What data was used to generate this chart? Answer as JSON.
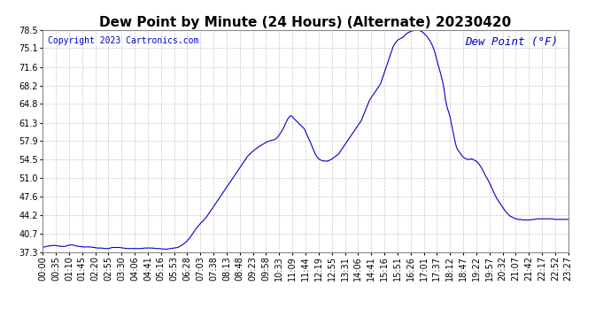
{
  "title": "Dew Point by Minute (24 Hours) (Alternate) 20230420",
  "copyright": "Copyright 2023 Cartronics.com",
  "legend_label": "Dew Point (°F)",
  "line_color": "#0000cc",
  "legend_color": "#0000cc",
  "copyright_color": "#0000cc",
  "background_color": "#ffffff",
  "grid_color": "#b0b0b0",
  "ylim": [
    37.3,
    78.5
  ],
  "yticks": [
    37.3,
    40.7,
    44.2,
    47.6,
    51.0,
    54.5,
    57.9,
    61.3,
    64.8,
    68.2,
    71.6,
    75.1,
    78.5
  ],
  "xtick_labels": [
    "00:00",
    "00:35",
    "01:10",
    "01:45",
    "02:20",
    "02:55",
    "03:30",
    "04:06",
    "04:41",
    "05:16",
    "05:53",
    "06:28",
    "07:03",
    "07:38",
    "08:13",
    "08:48",
    "09:23",
    "09:58",
    "10:33",
    "11:09",
    "11:44",
    "12:19",
    "12:55",
    "13:31",
    "14:06",
    "14:41",
    "15:16",
    "15:51",
    "16:26",
    "17:01",
    "17:37",
    "18:12",
    "18:47",
    "19:22",
    "19:57",
    "20:32",
    "21:07",
    "21:42",
    "22:17",
    "22:52",
    "23:27"
  ],
  "title_fontsize": 11,
  "axis_fontsize": 7,
  "copyright_fontsize": 7,
  "legend_fontsize": 9,
  "data_points": [
    [
      0,
      38.2
    ],
    [
      10,
      38.4
    ],
    [
      20,
      38.5
    ],
    [
      30,
      38.6
    ],
    [
      40,
      38.5
    ],
    [
      50,
      38.4
    ],
    [
      60,
      38.4
    ],
    [
      70,
      38.6
    ],
    [
      80,
      38.7
    ],
    [
      90,
      38.5
    ],
    [
      100,
      38.4
    ],
    [
      110,
      38.3
    ],
    [
      120,
      38.3
    ],
    [
      130,
      38.3
    ],
    [
      140,
      38.2
    ],
    [
      150,
      38.1
    ],
    [
      160,
      38.1
    ],
    [
      170,
      38.0
    ],
    [
      180,
      38.0
    ],
    [
      185,
      38.1
    ],
    [
      190,
      38.2
    ],
    [
      200,
      38.2
    ],
    [
      210,
      38.2
    ],
    [
      220,
      38.1
    ],
    [
      230,
      38.0
    ],
    [
      240,
      38.0
    ],
    [
      250,
      38.0
    ],
    [
      260,
      38.0
    ],
    [
      270,
      38.0
    ],
    [
      280,
      38.1
    ],
    [
      290,
      38.1
    ],
    [
      300,
      38.1
    ],
    [
      310,
      38.0
    ],
    [
      320,
      38.0
    ],
    [
      330,
      37.9
    ],
    [
      340,
      37.9
    ],
    [
      350,
      38.0
    ],
    [
      360,
      38.1
    ],
    [
      370,
      38.2
    ],
    [
      375,
      38.4
    ],
    [
      380,
      38.6
    ],
    [
      385,
      38.8
    ],
    [
      390,
      39.1
    ],
    [
      395,
      39.4
    ],
    [
      400,
      39.8
    ],
    [
      405,
      40.2
    ],
    [
      410,
      40.7
    ],
    [
      415,
      41.2
    ],
    [
      420,
      41.7
    ],
    [
      425,
      42.1
    ],
    [
      430,
      42.5
    ],
    [
      435,
      42.9
    ],
    [
      440,
      43.2
    ],
    [
      445,
      43.6
    ],
    [
      450,
      44.0
    ],
    [
      455,
      44.5
    ],
    [
      460,
      45.0
    ],
    [
      465,
      45.5
    ],
    [
      470,
      46.0
    ],
    [
      475,
      46.5
    ],
    [
      480,
      47.0
    ],
    [
      485,
      47.5
    ],
    [
      490,
      48.0
    ],
    [
      495,
      48.5
    ],
    [
      500,
      49.0
    ],
    [
      505,
      49.5
    ],
    [
      510,
      50.0
    ],
    [
      515,
      50.5
    ],
    [
      520,
      51.0
    ],
    [
      525,
      51.5
    ],
    [
      530,
      52.0
    ],
    [
      535,
      52.5
    ],
    [
      540,
      53.0
    ],
    [
      545,
      53.5
    ],
    [
      550,
      54.0
    ],
    [
      555,
      54.5
    ],
    [
      560,
      55.0
    ],
    [
      565,
      55.4
    ],
    [
      570,
      55.7
    ],
    [
      575,
      56.0
    ],
    [
      580,
      56.3
    ],
    [
      585,
      56.5
    ],
    [
      590,
      56.8
    ],
    [
      595,
      57.0
    ],
    [
      600,
      57.2
    ],
    [
      605,
      57.4
    ],
    [
      610,
      57.6
    ],
    [
      615,
      57.8
    ],
    [
      620,
      57.9
    ],
    [
      625,
      58.0
    ],
    [
      630,
      58.1
    ],
    [
      635,
      58.2
    ],
    [
      638,
      58.3
    ],
    [
      641,
      58.5
    ],
    [
      644,
      58.7
    ],
    [
      647,
      59.0
    ],
    [
      650,
      59.3
    ],
    [
      653,
      59.6
    ],
    [
      656,
      59.9
    ],
    [
      659,
      60.3
    ],
    [
      662,
      60.7
    ],
    [
      665,
      61.2
    ],
    [
      668,
      61.6
    ],
    [
      671,
      62.0
    ],
    [
      674,
      62.3
    ],
    [
      677,
      62.5
    ],
    [
      680,
      62.6
    ],
    [
      683,
      62.5
    ],
    [
      686,
      62.2
    ],
    [
      689,
      62.0
    ],
    [
      692,
      61.8
    ],
    [
      695,
      61.6
    ],
    [
      698,
      61.4
    ],
    [
      701,
      61.2
    ],
    [
      704,
      61.0
    ],
    [
      707,
      60.8
    ],
    [
      710,
      60.6
    ],
    [
      713,
      60.4
    ],
    [
      716,
      60.2
    ],
    [
      719,
      59.8
    ],
    [
      722,
      59.3
    ],
    [
      725,
      58.8
    ],
    [
      728,
      58.4
    ],
    [
      731,
      58.0
    ],
    [
      734,
      57.5
    ],
    [
      737,
      57.0
    ],
    [
      740,
      56.5
    ],
    [
      743,
      56.0
    ],
    [
      746,
      55.5
    ],
    [
      749,
      55.2
    ],
    [
      752,
      54.9
    ],
    [
      755,
      54.7
    ],
    [
      758,
      54.5
    ],
    [
      761,
      54.4
    ],
    [
      764,
      54.3
    ],
    [
      770,
      54.2
    ],
    [
      780,
      54.2
    ],
    [
      790,
      54.5
    ],
    [
      800,
      55.0
    ],
    [
      810,
      55.5
    ],
    [
      815,
      56.0
    ],
    [
      820,
      56.5
    ],
    [
      825,
      57.0
    ],
    [
      830,
      57.5
    ],
    [
      835,
      58.0
    ],
    [
      840,
      58.5
    ],
    [
      845,
      59.0
    ],
    [
      850,
      59.5
    ],
    [
      855,
      60.0
    ],
    [
      860,
      60.5
    ],
    [
      865,
      61.0
    ],
    [
      868,
      61.3
    ],
    [
      871,
      61.5
    ],
    [
      874,
      62.0
    ],
    [
      877,
      62.5
    ],
    [
      880,
      63.0
    ],
    [
      883,
      63.5
    ],
    [
      886,
      64.0
    ],
    [
      889,
      64.5
    ],
    [
      892,
      65.0
    ],
    [
      895,
      65.5
    ],
    [
      900,
      66.0
    ],
    [
      905,
      66.5
    ],
    [
      910,
      67.0
    ],
    [
      915,
      67.5
    ],
    [
      920,
      68.0
    ],
    [
      925,
      68.5
    ],
    [
      930,
      69.5
    ],
    [
      935,
      70.5
    ],
    [
      940,
      71.5
    ],
    [
      945,
      72.5
    ],
    [
      950,
      73.5
    ],
    [
      955,
      74.5
    ],
    [
      960,
      75.5
    ],
    [
      965,
      76.0
    ],
    [
      968,
      76.3
    ],
    [
      971,
      76.5
    ],
    [
      974,
      76.7
    ],
    [
      977,
      76.8
    ],
    [
      980,
      76.9
    ],
    [
      983,
      77.0
    ],
    [
      986,
      77.1
    ],
    [
      989,
      77.3
    ],
    [
      992,
      77.5
    ],
    [
      995,
      77.7
    ],
    [
      998,
      77.9
    ],
    [
      1001,
      78.0
    ],
    [
      1004,
      78.1
    ],
    [
      1007,
      78.2
    ],
    [
      1010,
      78.3
    ],
    [
      1013,
      78.3
    ],
    [
      1016,
      78.4
    ],
    [
      1019,
      78.4
    ],
    [
      1022,
      78.5
    ],
    [
      1025,
      78.5
    ],
    [
      1028,
      78.4
    ],
    [
      1031,
      78.4
    ],
    [
      1034,
      78.3
    ],
    [
      1037,
      78.2
    ],
    [
      1040,
      78.1
    ],
    [
      1043,
      77.9
    ],
    [
      1046,
      77.7
    ],
    [
      1049,
      77.5
    ],
    [
      1052,
      77.3
    ],
    [
      1055,
      77.0
    ],
    [
      1058,
      76.7
    ],
    [
      1061,
      76.4
    ],
    [
      1064,
      76.0
    ],
    [
      1067,
      75.6
    ],
    [
      1070,
      75.1
    ],
    [
      1073,
      74.5
    ],
    [
      1076,
      73.8
    ],
    [
      1079,
      73.0
    ],
    [
      1082,
      72.2
    ],
    [
      1085,
      71.5
    ],
    [
      1088,
      70.8
    ],
    [
      1091,
      70.0
    ],
    [
      1094,
      69.2
    ],
    [
      1097,
      68.3
    ],
    [
      1100,
      67.0
    ],
    [
      1103,
      65.5
    ],
    [
      1106,
      64.5
    ],
    [
      1109,
      63.8
    ],
    [
      1112,
      63.2
    ],
    [
      1115,
      62.5
    ],
    [
      1118,
      61.5
    ],
    [
      1121,
      60.5
    ],
    [
      1124,
      59.5
    ],
    [
      1127,
      58.5
    ],
    [
      1130,
      57.5
    ],
    [
      1133,
      56.8
    ],
    [
      1136,
      56.3
    ],
    [
      1139,
      56.0
    ],
    [
      1142,
      55.8
    ],
    [
      1145,
      55.5
    ],
    [
      1148,
      55.2
    ],
    [
      1151,
      55.0
    ],
    [
      1154,
      54.8
    ],
    [
      1157,
      54.7
    ],
    [
      1160,
      54.6
    ],
    [
      1163,
      54.5
    ],
    [
      1166,
      54.5
    ],
    [
      1169,
      54.5
    ],
    [
      1172,
      54.6
    ],
    [
      1175,
      54.6
    ],
    [
      1178,
      54.5
    ],
    [
      1181,
      54.4
    ],
    [
      1184,
      54.3
    ],
    [
      1187,
      54.2
    ],
    [
      1190,
      54.0
    ],
    [
      1193,
      53.8
    ],
    [
      1196,
      53.5
    ],
    [
      1199,
      53.2
    ],
    [
      1202,
      52.9
    ],
    [
      1205,
      52.5
    ],
    [
      1208,
      52.1
    ],
    [
      1211,
      51.7
    ],
    [
      1214,
      51.3
    ],
    [
      1217,
      51.0
    ],
    [
      1220,
      50.6
    ],
    [
      1223,
      50.2
    ],
    [
      1226,
      49.8
    ],
    [
      1229,
      49.3
    ],
    [
      1232,
      48.9
    ],
    [
      1235,
      48.4
    ],
    [
      1238,
      48.0
    ],
    [
      1241,
      47.6
    ],
    [
      1244,
      47.2
    ],
    [
      1247,
      46.9
    ],
    [
      1250,
      46.6
    ],
    [
      1253,
      46.3
    ],
    [
      1256,
      46.0
    ],
    [
      1259,
      45.7
    ],
    [
      1262,
      45.4
    ],
    [
      1265,
      45.1
    ],
    [
      1268,
      44.8
    ],
    [
      1271,
      44.6
    ],
    [
      1274,
      44.4
    ],
    [
      1277,
      44.2
    ],
    [
      1280,
      44.0
    ],
    [
      1283,
      43.9
    ],
    [
      1286,
      43.8
    ],
    [
      1289,
      43.7
    ],
    [
      1292,
      43.6
    ],
    [
      1295,
      43.5
    ],
    [
      1298,
      43.5
    ],
    [
      1301,
      43.4
    ],
    [
      1304,
      43.4
    ],
    [
      1307,
      43.4
    ],
    [
      1310,
      43.4
    ],
    [
      1313,
      43.3
    ],
    [
      1316,
      43.3
    ],
    [
      1319,
      43.3
    ],
    [
      1322,
      43.3
    ],
    [
      1325,
      43.3
    ],
    [
      1328,
      43.3
    ],
    [
      1331,
      43.3
    ],
    [
      1334,
      43.3
    ],
    [
      1337,
      43.3
    ],
    [
      1340,
      43.4
    ],
    [
      1343,
      43.4
    ],
    [
      1346,
      43.4
    ],
    [
      1349,
      43.4
    ],
    [
      1352,
      43.5
    ],
    [
      1355,
      43.5
    ],
    [
      1358,
      43.5
    ],
    [
      1361,
      43.5
    ],
    [
      1364,
      43.5
    ],
    [
      1367,
      43.5
    ],
    [
      1370,
      43.5
    ],
    [
      1373,
      43.5
    ],
    [
      1376,
      43.5
    ],
    [
      1379,
      43.5
    ],
    [
      1382,
      43.5
    ],
    [
      1385,
      43.5
    ],
    [
      1388,
      43.5
    ],
    [
      1391,
      43.5
    ],
    [
      1394,
      43.5
    ],
    [
      1397,
      43.5
    ],
    [
      1400,
      43.4
    ],
    [
      1403,
      43.4
    ],
    [
      1406,
      43.4
    ],
    [
      1409,
      43.4
    ],
    [
      1412,
      43.4
    ],
    [
      1415,
      43.4
    ],
    [
      1418,
      43.4
    ],
    [
      1421,
      43.4
    ],
    [
      1424,
      43.4
    ],
    [
      1427,
      43.4
    ],
    [
      1430,
      43.4
    ],
    [
      1433,
      43.4
    ],
    [
      1436,
      43.4
    ],
    [
      1439,
      43.4
    ]
  ]
}
